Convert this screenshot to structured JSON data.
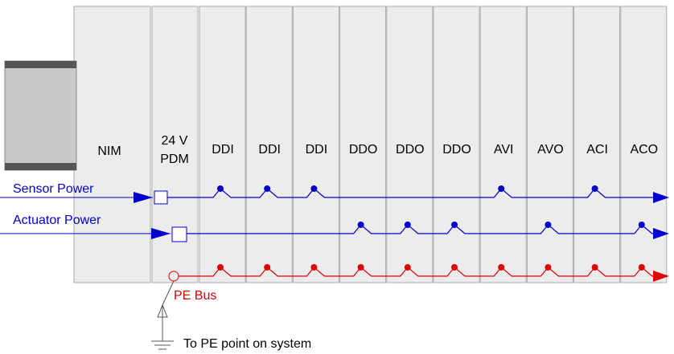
{
  "modules": [
    "NIM",
    "DDI",
    "DDI",
    "DDI",
    "DDO",
    "DDO",
    "DDO",
    "AVI",
    "AVO",
    "ACI",
    "ACO"
  ],
  "pdm": {
    "line1": "24 V",
    "line2": "PDM"
  },
  "sensor_power": "Sensor Power",
  "actuator_power": "Actuator Power",
  "pe_bus": "PE Bus",
  "ground_note": "To PE point on system"
}
